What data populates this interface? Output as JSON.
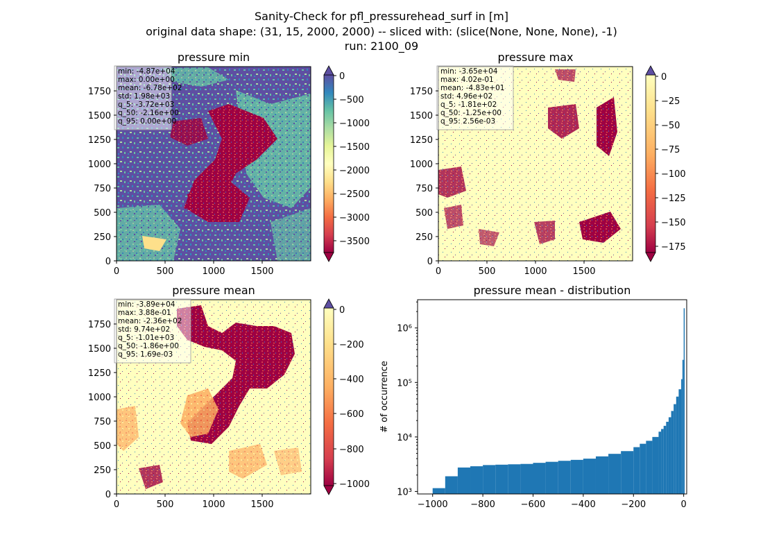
{
  "figure": {
    "suptitle_lines": [
      "Sanity-Check for pfl_pressurehead_surf in [m]",
      "original data shape: (31, 15, 2000, 2000) -- sliced with: (slice(None, None, None), -1)",
      "run: 2100_09"
    ]
  },
  "chart_data": [
    {
      "type": "heatmap",
      "title": "pressure min",
      "colormap": "Spectral",
      "x_ticks": [
        "0",
        "500",
        "1000",
        "1500"
      ],
      "y_ticks": [
        "0",
        "250",
        "500",
        "750",
        "1000",
        "1250",
        "1500",
        "1750"
      ],
      "xlim": [
        0,
        2000
      ],
      "ylim": [
        0,
        2000
      ],
      "colorbar": {
        "min": -3800,
        "max": 0,
        "ticks": [
          "0",
          "−500",
          "−1000",
          "−1500",
          "−2000",
          "−2500",
          "−3000",
          "−3500"
        ],
        "extend": "both"
      },
      "stats": [
        "min: -4.87e+04",
        "max: 0.00e+00",
        "mean: -6.78e+02",
        "std: 1.98e+03",
        "q_5: -3.72e+03",
        "q_50: -2.16e+00",
        "q_95: 0.00e+00"
      ]
    },
    {
      "type": "heatmap",
      "title": "pressure max",
      "colormap": "Spectral",
      "x_ticks": [
        "0",
        "500",
        "1000",
        "1500"
      ],
      "y_ticks": [
        "0",
        "250",
        "500",
        "750",
        "1000",
        "1250",
        "1500",
        "1750"
      ],
      "xlim": [
        0,
        2000
      ],
      "ylim": [
        0,
        2000
      ],
      "colorbar": {
        "min": -181,
        "max": 0,
        "ticks": [
          "0",
          "−25",
          "−50",
          "−75",
          "−100",
          "−125",
          "−150",
          "−175"
        ],
        "extend": "both"
      },
      "stats": [
        "min: -3.65e+04",
        "max: 4.02e-01",
        "mean: -4.83e+01",
        "std: 4.96e+02",
        "q_5: -1.81e+02",
        "q_50: -1.25e+00",
        "q_95: 2.56e-03"
      ]
    },
    {
      "type": "heatmap",
      "title": "pressure mean",
      "colormap": "Spectral",
      "x_ticks": [
        "0",
        "500",
        "1000",
        "1500"
      ],
      "y_ticks": [
        "0",
        "250",
        "500",
        "750",
        "1000",
        "1250",
        "1500",
        "1750"
      ],
      "xlim": [
        0,
        2000
      ],
      "ylim": [
        0,
        2000
      ],
      "colorbar": {
        "min": -1010,
        "max": 0,
        "ticks": [
          "0",
          "−200",
          "−400",
          "−600",
          "−800",
          "−1000"
        ],
        "extend": "both"
      },
      "stats": [
        "min: -3.89e+04",
        "max: 3.88e-01",
        "mean: -2.36e+02",
        "std: 9.74e+02",
        "q_5: -1.01e+03",
        "q_50: -1.86e+00",
        "q_95: 1.69e-03"
      ]
    },
    {
      "type": "bar",
      "title": "pressure mean - distribution",
      "ylabel": "# of occurrence",
      "xlabel": "",
      "yscale": "log",
      "bar_color": "#1f77b4",
      "x_ticks": [
        "−1000",
        "−800",
        "−600",
        "−400",
        "−200",
        "0"
      ],
      "x_tick_values": [
        -1000,
        -800,
        -600,
        -400,
        -200,
        0
      ],
      "y_ticks": [
        "10³",
        "10⁴",
        "10⁵",
        "10⁶"
      ],
      "y_tick_values": [
        1000,
        10000,
        100000,
        1000000
      ],
      "xlim": [
        -1060,
        12
      ],
      "ylim": [
        900,
        3300000
      ],
      "x": [
        -1000,
        -950,
        -900,
        -850,
        -800,
        -750,
        -700,
        -650,
        -600,
        -550,
        -500,
        -450,
        -400,
        -350,
        -300,
        -250,
        -200,
        -175,
        -150,
        -125,
        -100,
        -90,
        -80,
        -70,
        -60,
        -50,
        -40,
        -30,
        -20,
        -10,
        -5,
        0
      ],
      "values": [
        1150,
        1900,
        2750,
        2900,
        3050,
        3100,
        3150,
        3200,
        3350,
        3500,
        3650,
        3800,
        4000,
        4400,
        4900,
        5500,
        6500,
        7500,
        8500,
        10000,
        12500,
        14000,
        16000,
        19000,
        23000,
        30000,
        40000,
        55000,
        75000,
        115000,
        260000,
        2300000
      ]
    }
  ]
}
